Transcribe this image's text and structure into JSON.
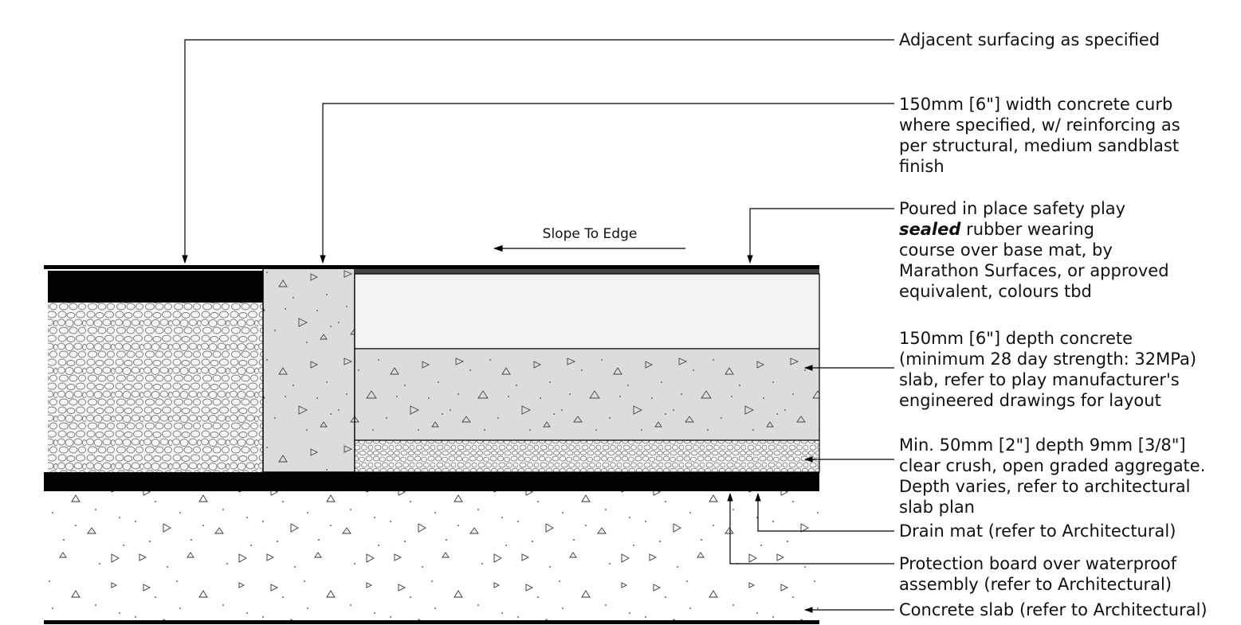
{
  "slope_label": "Slope To Edge",
  "callouts": [
    {
      "id": "adjacent-surfacing",
      "lines": [
        "Adjacent surfacing as specified"
      ]
    },
    {
      "id": "concrete-curb",
      "lines": [
        "150mm [6\"] width concrete curb",
        "where specified, w/ reinforcing as",
        "per structural, medium sandblast",
        "finish"
      ]
    },
    {
      "id": "safety-surfacing",
      "line1_pre": "Poured in place safety play",
      "line2_bold": "sealed",
      "line2_rest": " rubber wearing",
      "lines_rest": [
        "course over base mat, by",
        "Marathon Surfaces, or approved",
        "equivalent, colours tbd"
      ]
    },
    {
      "id": "concrete-depth",
      "lines": [
        "150mm [6\"] depth concrete",
        "(minimum 28 day strength: 32MPa)",
        "slab, refer to play manufacturer's",
        "engineered drawings for layout"
      ]
    },
    {
      "id": "clear-crush",
      "lines": [
        "Min. 50mm [2\"] depth 9mm [3/8\"]",
        "clear crush, open graded aggregate.",
        "Depth varies, refer to architectural",
        "slab plan"
      ]
    },
    {
      "id": "drain-mat",
      "lines": [
        "Drain mat (refer to Architectural)"
      ]
    },
    {
      "id": "protection-board",
      "lines": [
        "Protection board over waterproof",
        "assembly (refer to Architectural)"
      ]
    },
    {
      "id": "concrete-slab",
      "lines": [
        "Concrete slab (refer to Architectural)"
      ]
    }
  ],
  "colors": {
    "ink": "#111111",
    "concrete": "#dcdcdc",
    "aggregate": "#f4f4f4",
    "surfacing": "#f2f2f2",
    "black": "#000000"
  }
}
